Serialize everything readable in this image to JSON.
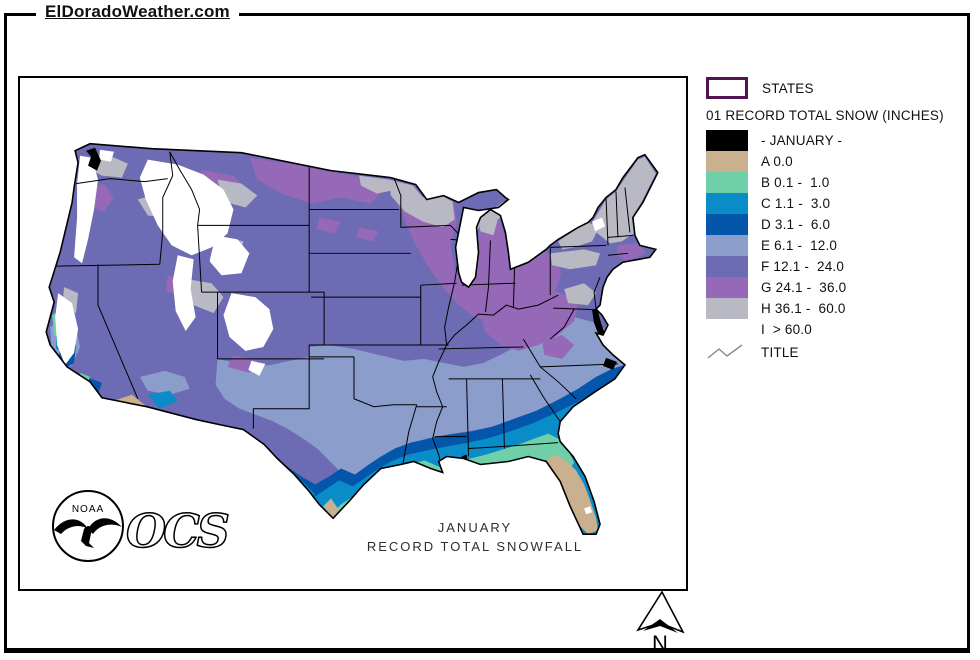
{
  "page": {
    "title": "ElDoradoWeather.com"
  },
  "legend": {
    "states_label": "STATES",
    "states_border_color": "#511352",
    "header": "01 RECORD TOTAL SNOW (INCHES)",
    "items": [
      {
        "key": "JAN",
        "label": "- JANUARY -",
        "color": "#000000"
      },
      {
        "key": "A",
        "label": "A 0.0",
        "color": "#c9b190"
      },
      {
        "key": "B",
        "label": "B 0.1 -  1.0",
        "color": "#6fcfa9"
      },
      {
        "key": "C",
        "label": "C 1.1 -  3.0",
        "color": "#0a8cc9"
      },
      {
        "key": "D",
        "label": "D 3.1 -  6.0",
        "color": "#0456aa"
      },
      {
        "key": "E",
        "label": "E 6.1 -  12.0",
        "color": "#8b9dca"
      },
      {
        "key": "F",
        "label": "F 12.1 -  24.0",
        "color": "#6c6bb4"
      },
      {
        "key": "G",
        "label": "G 24.1 -  36.0",
        "color": "#9668b8"
      },
      {
        "key": "H",
        "label": "H 36.1 -  60.0",
        "color": "#b9b9c3"
      },
      {
        "key": "I",
        "label": "I  > 60.0",
        "color": "#ffffff"
      }
    ],
    "title_item_label": "TITLE"
  },
  "map": {
    "title_line1": "JANUARY",
    "title_line2": "RECORD TOTAL SNOWFALL",
    "noaa_label": "NOAA",
    "ocs_label": "OCS",
    "compass_label": "N",
    "outline_color": "#000000"
  }
}
